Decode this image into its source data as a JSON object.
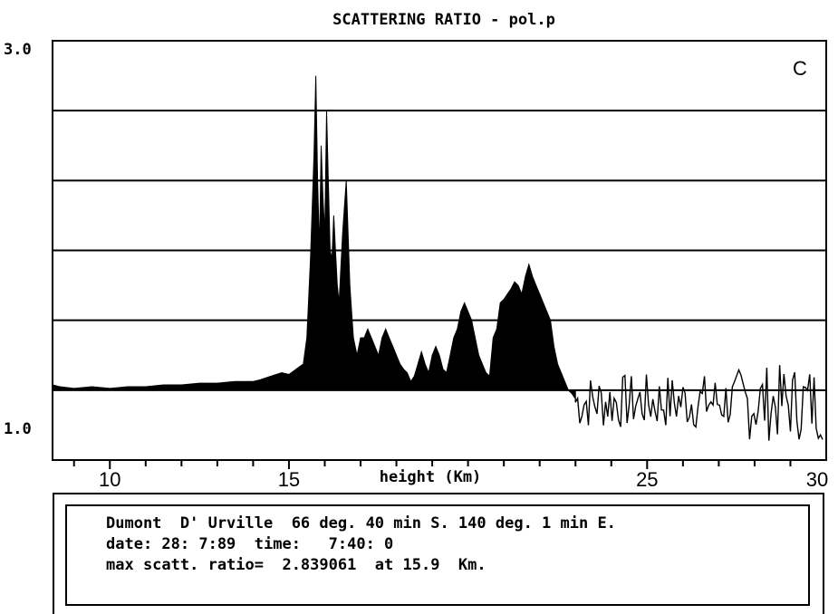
{
  "chart_data": {
    "type": "area",
    "title": "SCATTERING  RATIO  - pol.p",
    "panel_label": "C",
    "xlabel": "height (Km)",
    "xlim": [
      8.4,
      30
    ],
    "ylim": [
      0.6,
      3.0
    ],
    "y_tick_labels": [
      "3.0",
      "1.0"
    ],
    "x_tick_labels": [
      "10",
      "15",
      "25",
      "30"
    ],
    "x_ticks": [
      10,
      15,
      25,
      30
    ],
    "y_gridlines": [
      1.0,
      1.4,
      1.8,
      2.2,
      2.6
    ],
    "series": [
      {
        "x": [
          8.4,
          8.6,
          9.0,
          9.5,
          10.0,
          10.5,
          11.0,
          11.5,
          12.0,
          12.5,
          13.0,
          13.5,
          14.0,
          14.2,
          14.5,
          14.8,
          15.0,
          15.2,
          15.4,
          15.5,
          15.6,
          15.7,
          15.75,
          15.8,
          15.85,
          15.9,
          15.95,
          16.0,
          16.05,
          16.1,
          16.15,
          16.2,
          16.25,
          16.3,
          16.35,
          16.4,
          16.5,
          16.6,
          16.7,
          16.75,
          16.8,
          16.9,
          17.0,
          17.1,
          17.2,
          17.3,
          17.4,
          17.5,
          17.6,
          17.7,
          17.8,
          17.9,
          18.0,
          18.1,
          18.2,
          18.3,
          18.4,
          18.5,
          18.6,
          18.7,
          18.8,
          18.9,
          19.0,
          19.1,
          19.2,
          19.3,
          19.4,
          19.5,
          19.6,
          19.7,
          19.8,
          19.9,
          20.0,
          20.1,
          20.2,
          20.3,
          20.4,
          20.5,
          20.6,
          20.7,
          20.8,
          20.9,
          21.0,
          21.1,
          21.2,
          21.3,
          21.4,
          21.5,
          21.6,
          21.7,
          21.8,
          21.9,
          22.0,
          22.1,
          22.2,
          22.3,
          22.4,
          22.5,
          22.6,
          22.7,
          22.8,
          22.9,
          23.0
        ],
        "y": [
          1.03,
          1.02,
          1.01,
          1.02,
          1.01,
          1.02,
          1.02,
          1.03,
          1.03,
          1.04,
          1.04,
          1.05,
          1.05,
          1.06,
          1.08,
          1.1,
          1.09,
          1.12,
          1.15,
          1.3,
          1.75,
          2.35,
          2.8,
          2.2,
          1.8,
          2.4,
          2.1,
          1.9,
          2.6,
          2.2,
          1.8,
          1.75,
          2.0,
          1.8,
          1.6,
          1.5,
          1.9,
          2.2,
          1.6,
          1.45,
          1.3,
          1.2,
          1.3,
          1.3,
          1.35,
          1.3,
          1.25,
          1.2,
          1.3,
          1.35,
          1.3,
          1.25,
          1.2,
          1.15,
          1.12,
          1.1,
          1.05,
          1.08,
          1.15,
          1.22,
          1.15,
          1.1,
          1.2,
          1.25,
          1.2,
          1.12,
          1.1,
          1.2,
          1.3,
          1.35,
          1.45,
          1.5,
          1.45,
          1.4,
          1.3,
          1.2,
          1.15,
          1.1,
          1.08,
          1.3,
          1.35,
          1.5,
          1.52,
          1.55,
          1.58,
          1.62,
          1.6,
          1.55,
          1.65,
          1.72,
          1.65,
          1.6,
          1.55,
          1.5,
          1.45,
          1.4,
          1.25,
          1.15,
          1.1,
          1.05,
          1.0,
          0.98,
          0.95
        ]
      }
    ]
  },
  "info": {
    "line1": "Dumont  D' Urville  66 deg. 40 min S. 140 deg. 1 min E.",
    "line2": "date: 28: 7:89  time:   7:40: 0",
    "line3": "max scatt. ratio=  2.839061  at 15.9  Km."
  }
}
